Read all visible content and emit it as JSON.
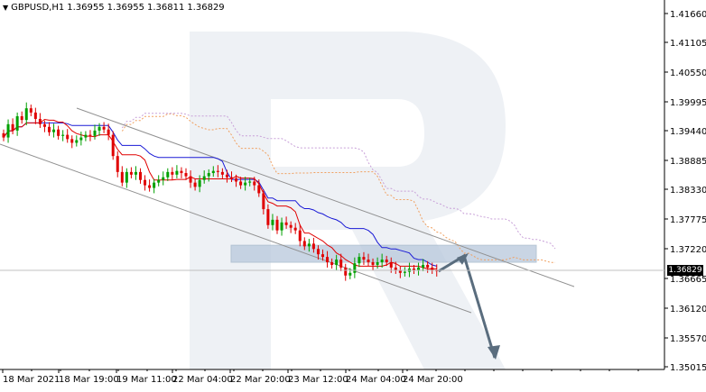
{
  "header": {
    "symbol": "GBPUSD,H1",
    "open": "1.36955",
    "high": "1.36955",
    "low": "1.36811",
    "close": "1.36829",
    "dropdown_icon": "triangle-down-icon"
  },
  "current_price_label": "1.36829",
  "watermark": "R",
  "colors": {
    "bull_candle": "#00a000",
    "bear_candle": "#e00000",
    "kijun": "#1a1ad6",
    "tenkan": "#e00000",
    "cloud_a": "#f0a060",
    "cloud_b": "#c8a0d8",
    "channel": "#909090",
    "arrow": "#5a6d7e",
    "zone": "#b8c8dc"
  },
  "chart_data": {
    "type": "candlestick",
    "title": "GBPUSD,H1",
    "y_ticks": [
      "1.41660",
      "1.41105",
      "1.40550",
      "1.39995",
      "1.39440",
      "1.38885",
      "1.38330",
      "1.37775",
      "1.37220",
      "1.36665",
      "1.36120",
      "1.35570",
      "1.35015"
    ],
    "x_ticks": [
      "18 Mar 2021",
      "18 Mar 19:00",
      "19 Mar 11:00",
      "22 Mar 04:00",
      "22 Mar 20:00",
      "23 Mar 12:00",
      "24 Mar 04:00",
      "24 Mar 20:00"
    ],
    "ylim": [
      1.3498,
      1.4194
    ],
    "grid": false,
    "candles_close": [
      1.3935,
      1.396,
      1.3948,
      1.3975,
      1.3968,
      1.399,
      1.3982,
      1.397,
      1.396,
      1.3955,
      1.3945,
      1.395,
      1.3938,
      1.394,
      1.3932,
      1.3925,
      1.393,
      1.3935,
      1.394,
      1.3938,
      1.3948,
      1.3955,
      1.395,
      1.394,
      1.39,
      1.387,
      1.385,
      1.387,
      1.3865,
      1.387,
      1.3855,
      1.3845,
      1.384,
      1.385,
      1.3855,
      1.386,
      1.387,
      1.3865,
      1.3872,
      1.3868,
      1.3862,
      1.385,
      1.3842,
      1.3855,
      1.3862,
      1.3868,
      1.3872,
      1.387,
      1.3865,
      1.386,
      1.3858,
      1.3852,
      1.3845,
      1.385,
      1.3852,
      1.3845,
      1.383,
      1.38,
      1.377,
      1.378,
      1.376,
      1.3775,
      1.377,
      1.3765,
      1.376,
      1.374,
      1.373,
      1.3735,
      1.3725,
      1.3715,
      1.371,
      1.37,
      1.3695,
      1.3705,
      1.369,
      1.3675,
      1.368,
      1.3698,
      1.371,
      1.3705,
      1.37,
      1.3695,
      1.37,
      1.3705,
      1.37,
      1.369,
      1.3685,
      1.368,
      1.3682,
      1.3688,
      1.3685,
      1.369,
      1.3695,
      1.369,
      1.3685,
      1.3683
    ],
    "channel_upper": [
      [
        1.3975,
        0
      ],
      [
        1.37,
        177
      ]
    ],
    "channel_lower": [
      [
        1.3915,
        0
      ],
      [
        1.362,
        177
      ]
    ],
    "forecast_path": [
      1.3683,
      1.3712,
      1.352
    ],
    "resistance_zone": [
      1.37,
      1.3732
    ]
  }
}
